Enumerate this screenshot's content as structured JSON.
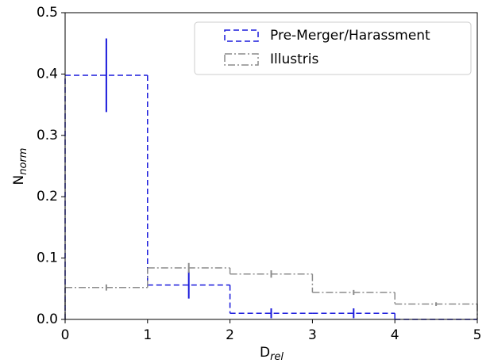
{
  "chart_data": {
    "type": "histogram",
    "xlabel": {
      "text": "D",
      "sub": "rel"
    },
    "ylabel": {
      "text": "N",
      "sub": "norm"
    },
    "bins": [
      0,
      1,
      2,
      3,
      4,
      5
    ],
    "series": [
      {
        "name": "Pre-Merger/Harassment",
        "color": "#1a1adb",
        "linestyle": "dashed",
        "values": [
          0.398,
          0.056,
          0.01,
          0.01,
          0.0
        ],
        "errors": [
          0.06,
          0.022,
          0.008,
          0.008,
          0
        ]
      },
      {
        "name": "Illustris",
        "color": "#8c8c8c",
        "linestyle": "dashdot",
        "values": [
          0.052,
          0.084,
          0.074,
          0.044,
          0.025
        ],
        "errors": [
          0.005,
          0.008,
          0.006,
          0.004,
          0.003
        ]
      }
    ],
    "xlim": [
      0,
      5
    ],
    "ylim": [
      0,
      0.5
    ],
    "xticks": [
      0,
      1,
      2,
      3,
      4,
      5
    ],
    "yticks": [
      {
        "value": 0,
        "label": "0.0"
      },
      0.1,
      0.2,
      0.3,
      0.4,
      0.5
    ],
    "legend": "upper right"
  }
}
